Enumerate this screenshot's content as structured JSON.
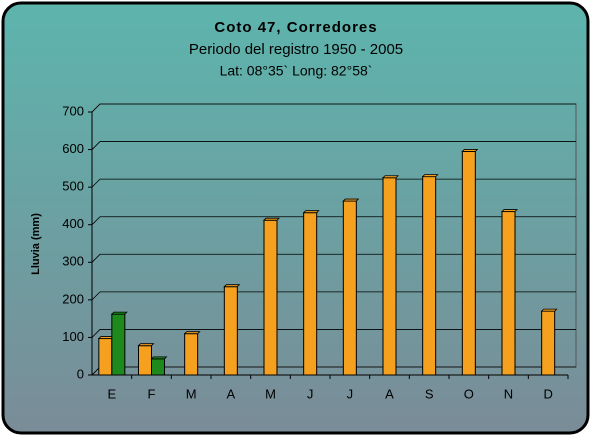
{
  "chart_data": {
    "type": "bar",
    "title": "Coto 47, Corredores",
    "subtitle": "Periodo del registro 1950 - 2005",
    "location": "Lat: 08°35` Long: 82°58`",
    "ylabel": "Lluvia (mm)",
    "categories": [
      "E",
      "F",
      "M",
      "A",
      "M",
      "J",
      "J",
      "A",
      "S",
      "O",
      "N",
      "D"
    ],
    "series": [
      {
        "color": "#f5a11f",
        "values": [
          97,
          78,
          110,
          235,
          412,
          432,
          463,
          525,
          528,
          595,
          435,
          170
        ]
      },
      {
        "color": "#1e8a1e",
        "values": [
          162,
          43,
          null,
          null,
          null,
          null,
          null,
          null,
          null,
          null,
          null,
          null
        ]
      }
    ],
    "ylim": [
      0,
      700
    ],
    "yticks": [
      0,
      100,
      200,
      300,
      400,
      500,
      600,
      700
    ],
    "grid": true
  }
}
